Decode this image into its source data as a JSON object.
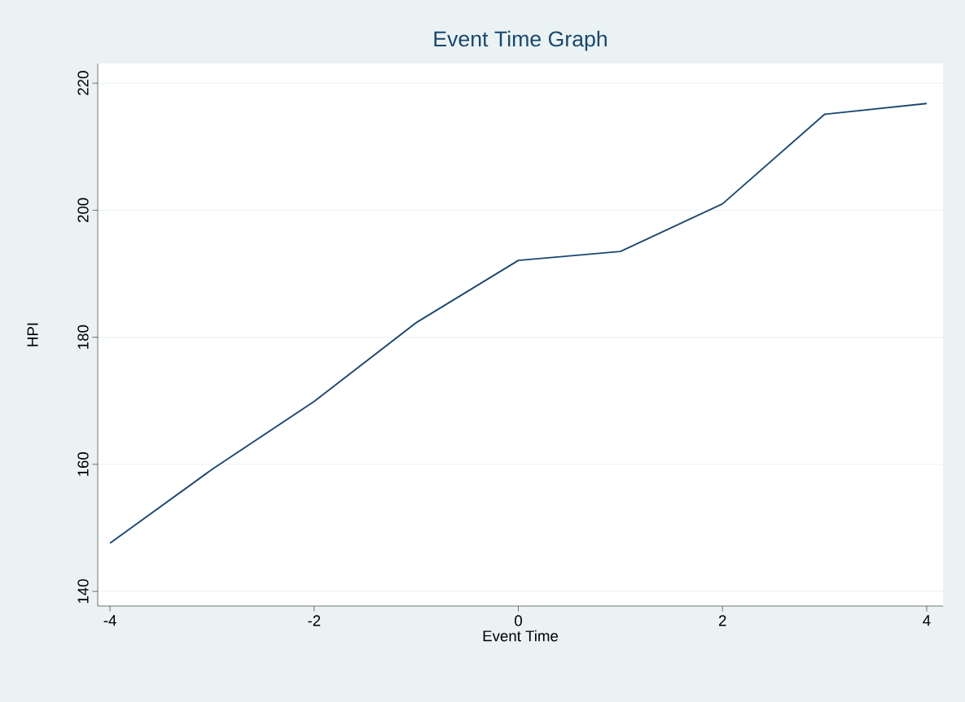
{
  "chart_data": {
    "type": "line",
    "title": "Event Time Graph",
    "xlabel": "Event Time",
    "ylabel": "HPI",
    "x": [
      -4,
      -3,
      -2,
      -1,
      0,
      1,
      2,
      3,
      4
    ],
    "series": [
      {
        "color": "#1a476f",
        "values": [
          147.6,
          159.2,
          169.9,
          182.3,
          192.1,
          193.5,
          201.0,
          215.1,
          216.8
        ]
      }
    ],
    "xlim": [
      -4.12,
      4.16
    ],
    "ylim": [
      137.7,
      223.1
    ],
    "xticks": [
      -4,
      -2,
      0,
      2,
      4
    ],
    "yticks": [
      140,
      160,
      180,
      200,
      220
    ],
    "grid": "y",
    "marker": "none",
    "line_style": "solid"
  }
}
